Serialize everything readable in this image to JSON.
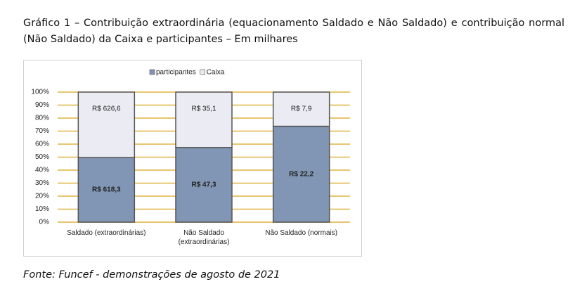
{
  "chart_data": {
    "type": "stacked_percent_bar",
    "title": "Gráfico 1 – Contribuição extraordinária (equacionamento Saldado e Não Saldado) e contribuição normal (Não Saldado) da Caixa e participantes – Em milhares",
    "source": "Fonte: Funcef - demonstrações de agosto de 2021",
    "categories": [
      "Saldado (extraordinárias)",
      "Não Saldado (extraordinárias)",
      "Não Saldado (normais)"
    ],
    "series": [
      {
        "name": "participantes",
        "color": "#8096b4",
        "values": [
          618.3,
          47.3,
          22.2
        ],
        "value_labels": [
          "R$ 618,3",
          "R$ 47,3",
          "R$ 22,2"
        ]
      },
      {
        "name": "Caixa",
        "color": "#ebebf4",
        "values": [
          626.6,
          35.1,
          7.9
        ],
        "value_labels": [
          "R$ 626,6",
          "R$ 35,1",
          "R$ 7,9"
        ]
      }
    ],
    "ylim": [
      0,
      100
    ],
    "yticks": [
      {
        "value": 0,
        "label": "0%"
      },
      {
        "value": 10,
        "label": "10%"
      },
      {
        "value": 20,
        "label": "20%"
      },
      {
        "value": 30,
        "label": "30%"
      },
      {
        "value": 40,
        "label": "40%"
      },
      {
        "value": 50,
        "label": "50%"
      },
      {
        "value": 60,
        "label": "60%"
      },
      {
        "value": 70,
        "label": "70%"
      },
      {
        "value": 80,
        "label": "80%"
      },
      {
        "value": 90,
        "label": "90%"
      },
      {
        "value": 100,
        "label": "100%"
      }
    ],
    "grid": true,
    "grid_color": "#e0b440",
    "legend": "top"
  }
}
